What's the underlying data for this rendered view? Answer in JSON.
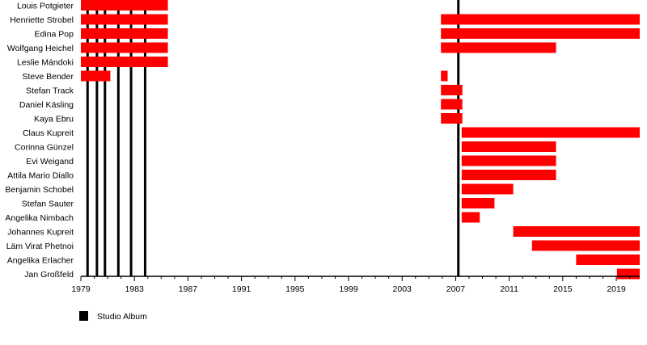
{
  "chart_data": {
    "type": "timeline",
    "xlim": [
      1979,
      2020.75
    ],
    "x_ticks": [
      1979,
      1983,
      1987,
      1991,
      1995,
      1999,
      2003,
      2007,
      2011,
      2015,
      2019
    ],
    "minor_ticks": "yearly",
    "bar_color": "#ff0000",
    "album_color": "#000000",
    "members": [
      {
        "name": "Louis Potgieter",
        "periods": [
          [
            1979,
            1985.5
          ]
        ]
      },
      {
        "name": "Henriette Strobel",
        "periods": [
          [
            1979,
            1985.5
          ],
          [
            2005.9,
            2020.75
          ]
        ]
      },
      {
        "name": "Edina Pop",
        "periods": [
          [
            1979,
            1985.5
          ],
          [
            2005.9,
            2020.75
          ]
        ]
      },
      {
        "name": "Wolfgang Heichel",
        "periods": [
          [
            1979,
            1985.5
          ],
          [
            2005.9,
            2014.5
          ]
        ]
      },
      {
        "name": "Leslie Mándoki",
        "periods": [
          [
            1979,
            1985.5
          ]
        ]
      },
      {
        "name": "Steve Bender",
        "periods": [
          [
            1979,
            1981.2
          ],
          [
            2005.9,
            2006.4
          ]
        ]
      },
      {
        "name": "Stefan Track",
        "periods": [
          [
            2005.9,
            2007.5
          ]
        ]
      },
      {
        "name": "Daniel Käsling",
        "periods": [
          [
            2005.9,
            2007.5
          ]
        ]
      },
      {
        "name": "Kaya Ebru",
        "periods": [
          [
            2005.9,
            2007.5
          ]
        ]
      },
      {
        "name": "Claus Kupreit",
        "periods": [
          [
            2007.45,
            2020.75
          ]
        ]
      },
      {
        "name": "Corinna Günzel",
        "periods": [
          [
            2007.45,
            2014.5
          ]
        ]
      },
      {
        "name": "Evi Weigand",
        "periods": [
          [
            2007.45,
            2014.5
          ]
        ]
      },
      {
        "name": "Attila Mario Diallo",
        "periods": [
          [
            2007.45,
            2014.5
          ]
        ]
      },
      {
        "name": "Benjamin Schobel",
        "periods": [
          [
            2007.45,
            2011.3
          ]
        ]
      },
      {
        "name": "Stefan Sauter",
        "periods": [
          [
            2007.45,
            2009.9
          ]
        ]
      },
      {
        "name": "Angelika Nimbach",
        "periods": [
          [
            2007.45,
            2008.8
          ]
        ]
      },
      {
        "name": "Johannes Kupreit",
        "periods": [
          [
            2011.3,
            2020.75
          ]
        ]
      },
      {
        "name": "Läm Virat Phetnoi",
        "periods": [
          [
            2012.7,
            2020.75
          ]
        ]
      },
      {
        "name": "Angelika Erlacher",
        "periods": [
          [
            2016,
            2020.75
          ]
        ]
      },
      {
        "name": "Jan Großfeld",
        "periods": [
          [
            2019.05,
            2020.75
          ]
        ]
      }
    ],
    "studio_albums": [
      1979.5,
      1980.2,
      1980.8,
      1981.8,
      1982.75,
      1983.8,
      2007.2
    ],
    "legend": [
      {
        "label": "Studio Album",
        "color": "#000000"
      }
    ]
  }
}
